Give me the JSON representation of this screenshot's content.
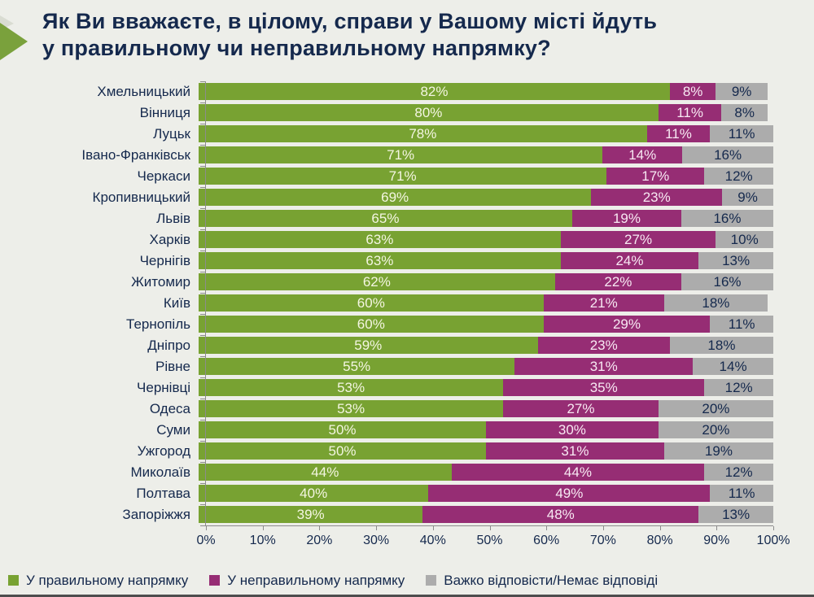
{
  "title": "Як Ви вважаєте, в цілому, справи у Вашому місті йдуть у правильному чи неправильному напрямку?",
  "title_lines": [
    "Як Ви вважаєте, в цілому, справи у Вашому місті йдуть",
    "у правильному чи неправильному напрямку?"
  ],
  "colors": {
    "positive": "#78a232",
    "negative": "#962d74",
    "neutral": "#acacac",
    "navy_text": "#15294d",
    "axis": "#8c8c8c",
    "background": "#edeee9"
  },
  "chart_data": {
    "type": "bar",
    "stacked": true,
    "orientation": "horizontal",
    "title": "Як Ви вважаєте, в цілому, справи у Вашому місті йдуть у правильному чи неправильному напрямку?",
    "value_suffix": "%",
    "xlim": [
      0,
      100
    ],
    "x_ticks": [
      "0%",
      "10%",
      "20%",
      "30%",
      "40%",
      "50%",
      "60%",
      "70%",
      "80%",
      "90%",
      "100%"
    ],
    "grid": false,
    "legend_position": "bottom",
    "categories": [
      "Хмельницький",
      "Вінниця",
      "Луцьк",
      "Івано-Франківськ",
      "Черкаси",
      "Кропивницький",
      "Львів",
      "Харків",
      "Чернігів",
      "Житомир",
      "Київ",
      "Тернопіль",
      "Дніпро",
      "Рівне",
      "Чернівці",
      "Одеса",
      "Суми",
      "Ужгород",
      "Миколаїв",
      "Полтава",
      "Запоріжжя"
    ],
    "series": [
      {
        "name": "У правильному напрямку",
        "key": "positive",
        "color": "#78a232",
        "values": [
          82,
          80,
          78,
          71,
          71,
          69,
          65,
          63,
          63,
          62,
          60,
          60,
          59,
          55,
          53,
          53,
          50,
          50,
          44,
          40,
          39
        ]
      },
      {
        "name": "У неправильному напрямку",
        "key": "negative",
        "color": "#962d74",
        "values": [
          8,
          11,
          11,
          14,
          17,
          23,
          19,
          27,
          24,
          22,
          21,
          29,
          23,
          31,
          35,
          27,
          30,
          31,
          44,
          49,
          48
        ]
      },
      {
        "name": "Важко відповісти/Немає відповіді",
        "key": "neutral",
        "color": "#acacac",
        "values": [
          9,
          8,
          11,
          16,
          12,
          9,
          16,
          10,
          13,
          16,
          18,
          11,
          18,
          14,
          12,
          20,
          20,
          19,
          12,
          11,
          13
        ]
      }
    ]
  },
  "legend": {
    "items": [
      {
        "label": "У правильному напрямку",
        "color": "#78a232",
        "key": "positive"
      },
      {
        "label": "У неправильному напрямку",
        "color": "#962d74",
        "key": "negative"
      },
      {
        "label": "Важко відповісти/Немає відповіді",
        "color": "#acacac",
        "key": "neutral"
      }
    ]
  }
}
